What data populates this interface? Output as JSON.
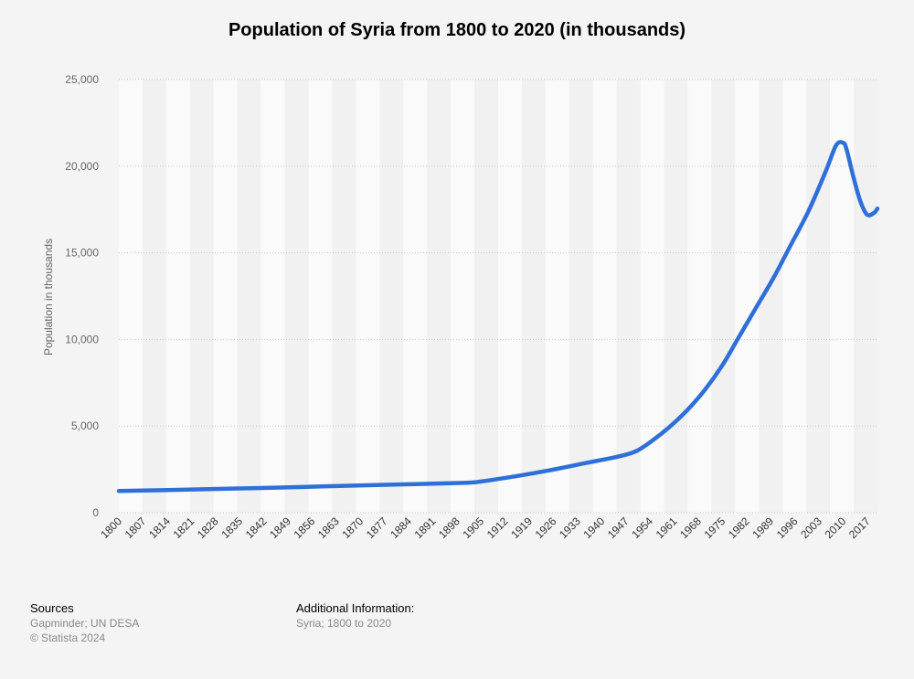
{
  "chart_data": {
    "type": "line",
    "title": "Population of Syria from 1800 to 2020 (in thousands)",
    "xlabel": "",
    "ylabel": "Population in thousands",
    "xlim": [
      1800,
      2020
    ],
    "ylim": [
      0,
      25000
    ],
    "yticks": [
      0,
      5000,
      10000,
      15000,
      20000,
      25000
    ],
    "ytick_labels": [
      "0",
      "5,000",
      "10,000",
      "15,000",
      "20,000",
      "25,000"
    ],
    "xtick_labels": [
      "1800",
      "1807",
      "1814",
      "1821",
      "1828",
      "1835",
      "1842",
      "1849",
      "1856",
      "1863",
      "1870",
      "1877",
      "1884",
      "1891",
      "1898",
      "1905",
      "1912",
      "1919",
      "1926",
      "1933",
      "1940",
      "1947",
      "1954",
      "1961",
      "1968",
      "1975",
      "1982",
      "1989",
      "1996",
      "2003",
      "2010",
      "2017"
    ],
    "series": [
      {
        "name": "Population",
        "color": "#2f6fd8",
        "x": [
          1800,
          1820,
          1840,
          1860,
          1880,
          1900,
          1905,
          1915,
          1925,
          1935,
          1945,
          1950,
          1955,
          1960,
          1965,
          1970,
          1975,
          1980,
          1985,
          1990,
          1995,
          2000,
          2005,
          2008,
          2010,
          2011,
          2013,
          2015,
          2017,
          2019,
          2020
        ],
        "values": [
          1250,
          1330,
          1420,
          1520,
          1620,
          1720,
          1800,
          2100,
          2450,
          2850,
          3250,
          3550,
          4200,
          5000,
          5950,
          7100,
          8500,
          10200,
          11900,
          13600,
          15500,
          17400,
          19700,
          21200,
          21350,
          21000,
          19400,
          18000,
          17200,
          17300,
          17550
        ]
      }
    ],
    "grid": true,
    "legend": "none"
  },
  "footer": {
    "sources_heading": "Sources",
    "sources_line1": "Gapminder; UN DESA",
    "sources_line2": "© Statista 2024",
    "additional_heading": "Additional Information:",
    "additional_line1": "Syria; 1800 to 2020"
  }
}
